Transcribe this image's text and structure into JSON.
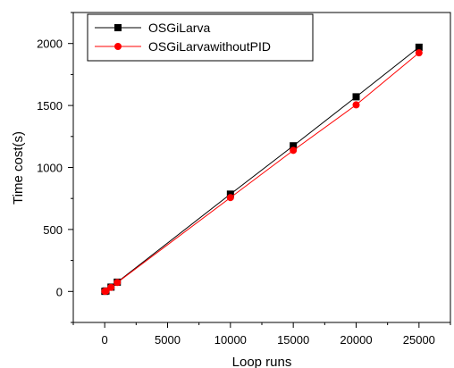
{
  "chart_data": {
    "type": "line",
    "title": "",
    "xlabel": "Loop runs",
    "ylabel": "Time cost(s)",
    "xlim": [
      -2500,
      27500
    ],
    "ylim": [
      -250,
      2250
    ],
    "xticks": [
      0,
      5000,
      10000,
      15000,
      20000,
      25000
    ],
    "yticks": [
      0,
      500,
      1000,
      1500,
      2000
    ],
    "grid": false,
    "legend_position": "top-left",
    "series": [
      {
        "name": "OSGiLarva",
        "color": "#000000",
        "marker": "square",
        "x": [
          10,
          100,
          500,
          1000,
          10000,
          15000,
          20000,
          25000
        ],
        "y": [
          1,
          4,
          35,
          75,
          785,
          1175,
          1570,
          1970
        ]
      },
      {
        "name": "OSGiLarvawithoutPID",
        "color": "#ff0000",
        "marker": "circle",
        "x": [
          10,
          100,
          500,
          1000,
          10000,
          15000,
          20000,
          25000
        ],
        "y": [
          1,
          3,
          33,
          72,
          757,
          1138,
          1505,
          1925
        ]
      }
    ]
  }
}
